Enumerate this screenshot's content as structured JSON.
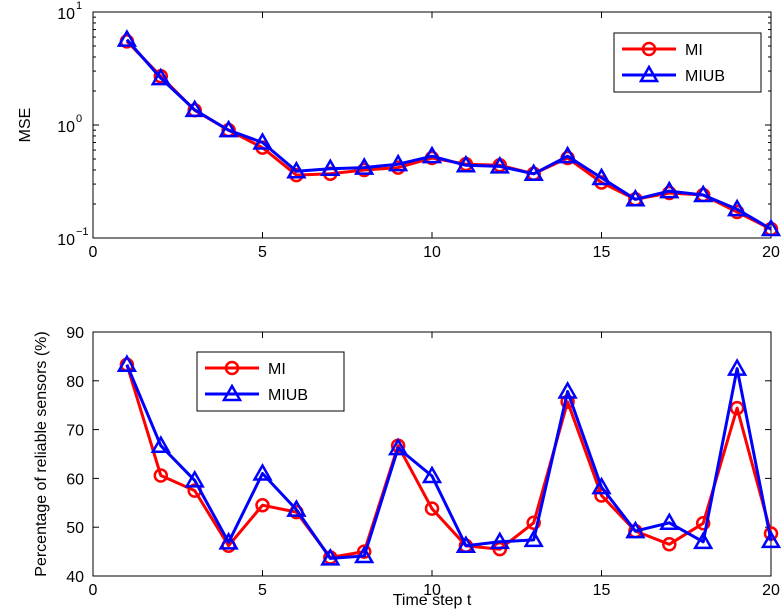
{
  "chart_data": [
    {
      "type": "line",
      "title": "",
      "xlabel": "",
      "ylabel": "MSE",
      "yscale": "log",
      "xlim": [
        0,
        20
      ],
      "ylim": [
        0.1,
        10
      ],
      "xticks": [
        "0",
        "5",
        "10",
        "15",
        "20"
      ],
      "yticks": [
        {
          "base": "10",
          "exp": "−1"
        },
        {
          "base": "10",
          "exp": "0"
        },
        {
          "base": "10",
          "exp": "1"
        }
      ],
      "grid": false,
      "legend_position": "top-right",
      "x": [
        1,
        2,
        3,
        4,
        5,
        6,
        7,
        8,
        9,
        10,
        11,
        12,
        13,
        14,
        15,
        16,
        17,
        18,
        19,
        20
      ],
      "series": [
        {
          "name": "MI",
          "color": "#ff0000",
          "marker": "circle",
          "values": [
            5.5,
            2.7,
            1.35,
            0.9,
            0.63,
            0.36,
            0.37,
            0.4,
            0.42,
            0.51,
            0.45,
            0.44,
            0.37,
            0.51,
            0.31,
            0.22,
            0.25,
            0.24,
            0.17,
            0.12
          ]
        },
        {
          "name": "MIUB",
          "color": "#0000ff",
          "marker": "triangle",
          "values": [
            5.7,
            2.6,
            1.36,
            0.9,
            0.7,
            0.39,
            0.41,
            0.42,
            0.45,
            0.53,
            0.44,
            0.43,
            0.37,
            0.53,
            0.34,
            0.22,
            0.26,
            0.24,
            0.18,
            0.12
          ]
        }
      ]
    },
    {
      "type": "line",
      "title": "",
      "xlabel": "Time step t",
      "ylabel": "Percentage of reliable sensors (%)",
      "xlim": [
        0,
        20
      ],
      "ylim": [
        40,
        90
      ],
      "xticks": [
        "0",
        "5",
        "10",
        "15",
        "20"
      ],
      "yticks": [
        "40",
        "50",
        "60",
        "70",
        "80",
        "90"
      ],
      "grid": false,
      "legend_position": "top-left",
      "x": [
        1,
        2,
        3,
        4,
        5,
        6,
        7,
        8,
        9,
        10,
        11,
        12,
        13,
        14,
        15,
        16,
        17,
        18,
        19,
        20
      ],
      "series": [
        {
          "name": "MI",
          "color": "#ff0000",
          "marker": "circle",
          "values": [
            83.3,
            60.6,
            57.5,
            46.2,
            54.5,
            53.1,
            43.8,
            45,
            66.7,
            53.8,
            46.2,
            45.5,
            50.9,
            75.7,
            56.5,
            49.2,
            46.5,
            50.8,
            74.4,
            48.7
          ]
        },
        {
          "name": "MIUB",
          "color": "#0000ff",
          "marker": "triangle",
          "values": [
            83.3,
            66.7,
            59.6,
            46.9,
            61,
            53.6,
            43.6,
            44.1,
            66.2,
            60.5,
            46.2,
            47,
            47.4,
            77.8,
            58.2,
            49.2,
            50.9,
            47,
            82.5,
            47.2
          ]
        }
      ]
    }
  ]
}
